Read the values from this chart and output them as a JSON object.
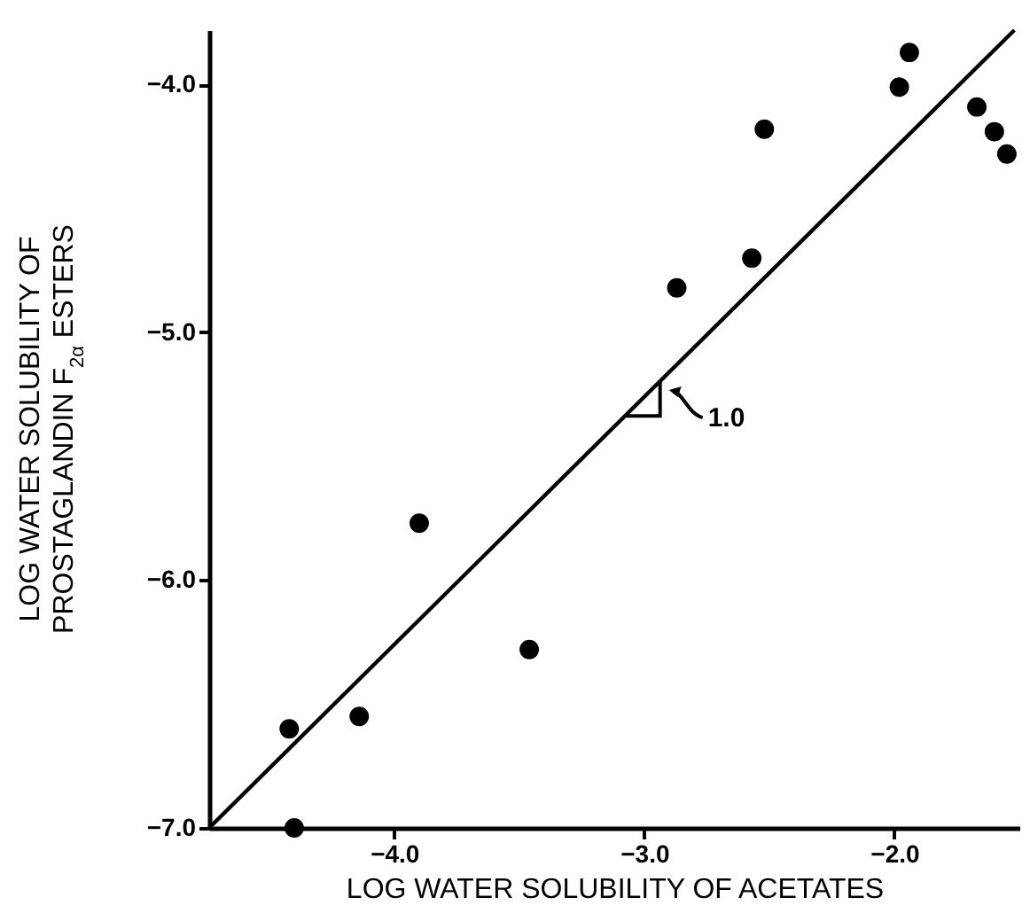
{
  "chart_data": {
    "type": "scatter",
    "xlabel": "LOG WATER SOLUBILITY OF ACETATES",
    "ylabel": "LOG WATER SOLUBILITY OF\nPROSTAGLANDIN F$_{2α}$ ESTERS",
    "xlim": [
      -4.74,
      -1.5
    ],
    "ylim": [
      -7.0,
      -3.78
    ],
    "xticks": [
      {
        "value": -4.0,
        "label": "−4.0"
      },
      {
        "value": -3.0,
        "label": "−3.0"
      },
      {
        "value": -2.0,
        "label": "−2.0"
      }
    ],
    "yticks": [
      {
        "value": -7.0,
        "label": "−7.0"
      },
      {
        "value": -6.0,
        "label": "−6.0"
      },
      {
        "value": -5.0,
        "label": "−5.0"
      },
      {
        "value": -4.0,
        "label": "−4.0"
      }
    ],
    "grid": false,
    "series": [
      {
        "color": "#000000",
        "x": [
          -4.4,
          -4.42,
          -4.14,
          -3.9,
          -3.46,
          -2.87,
          -2.57,
          -2.52,
          -1.98,
          -1.94,
          -1.67,
          -1.6,
          -1.55
        ],
        "values": [
          -7.0,
          -6.6,
          -6.55,
          -5.77,
          -6.28,
          -4.82,
          -4.7,
          -4.18,
          -4.01,
          -3.87,
          -4.09,
          -4.19,
          -4.28
        ]
      },
      {
        "type": "line",
        "color": "#000000",
        "x": [
          -4.74,
          -1.52
        ],
        "values": [
          -7.0,
          -3.78
        ]
      }
    ],
    "annotations": [
      "1.0"
    ]
  }
}
